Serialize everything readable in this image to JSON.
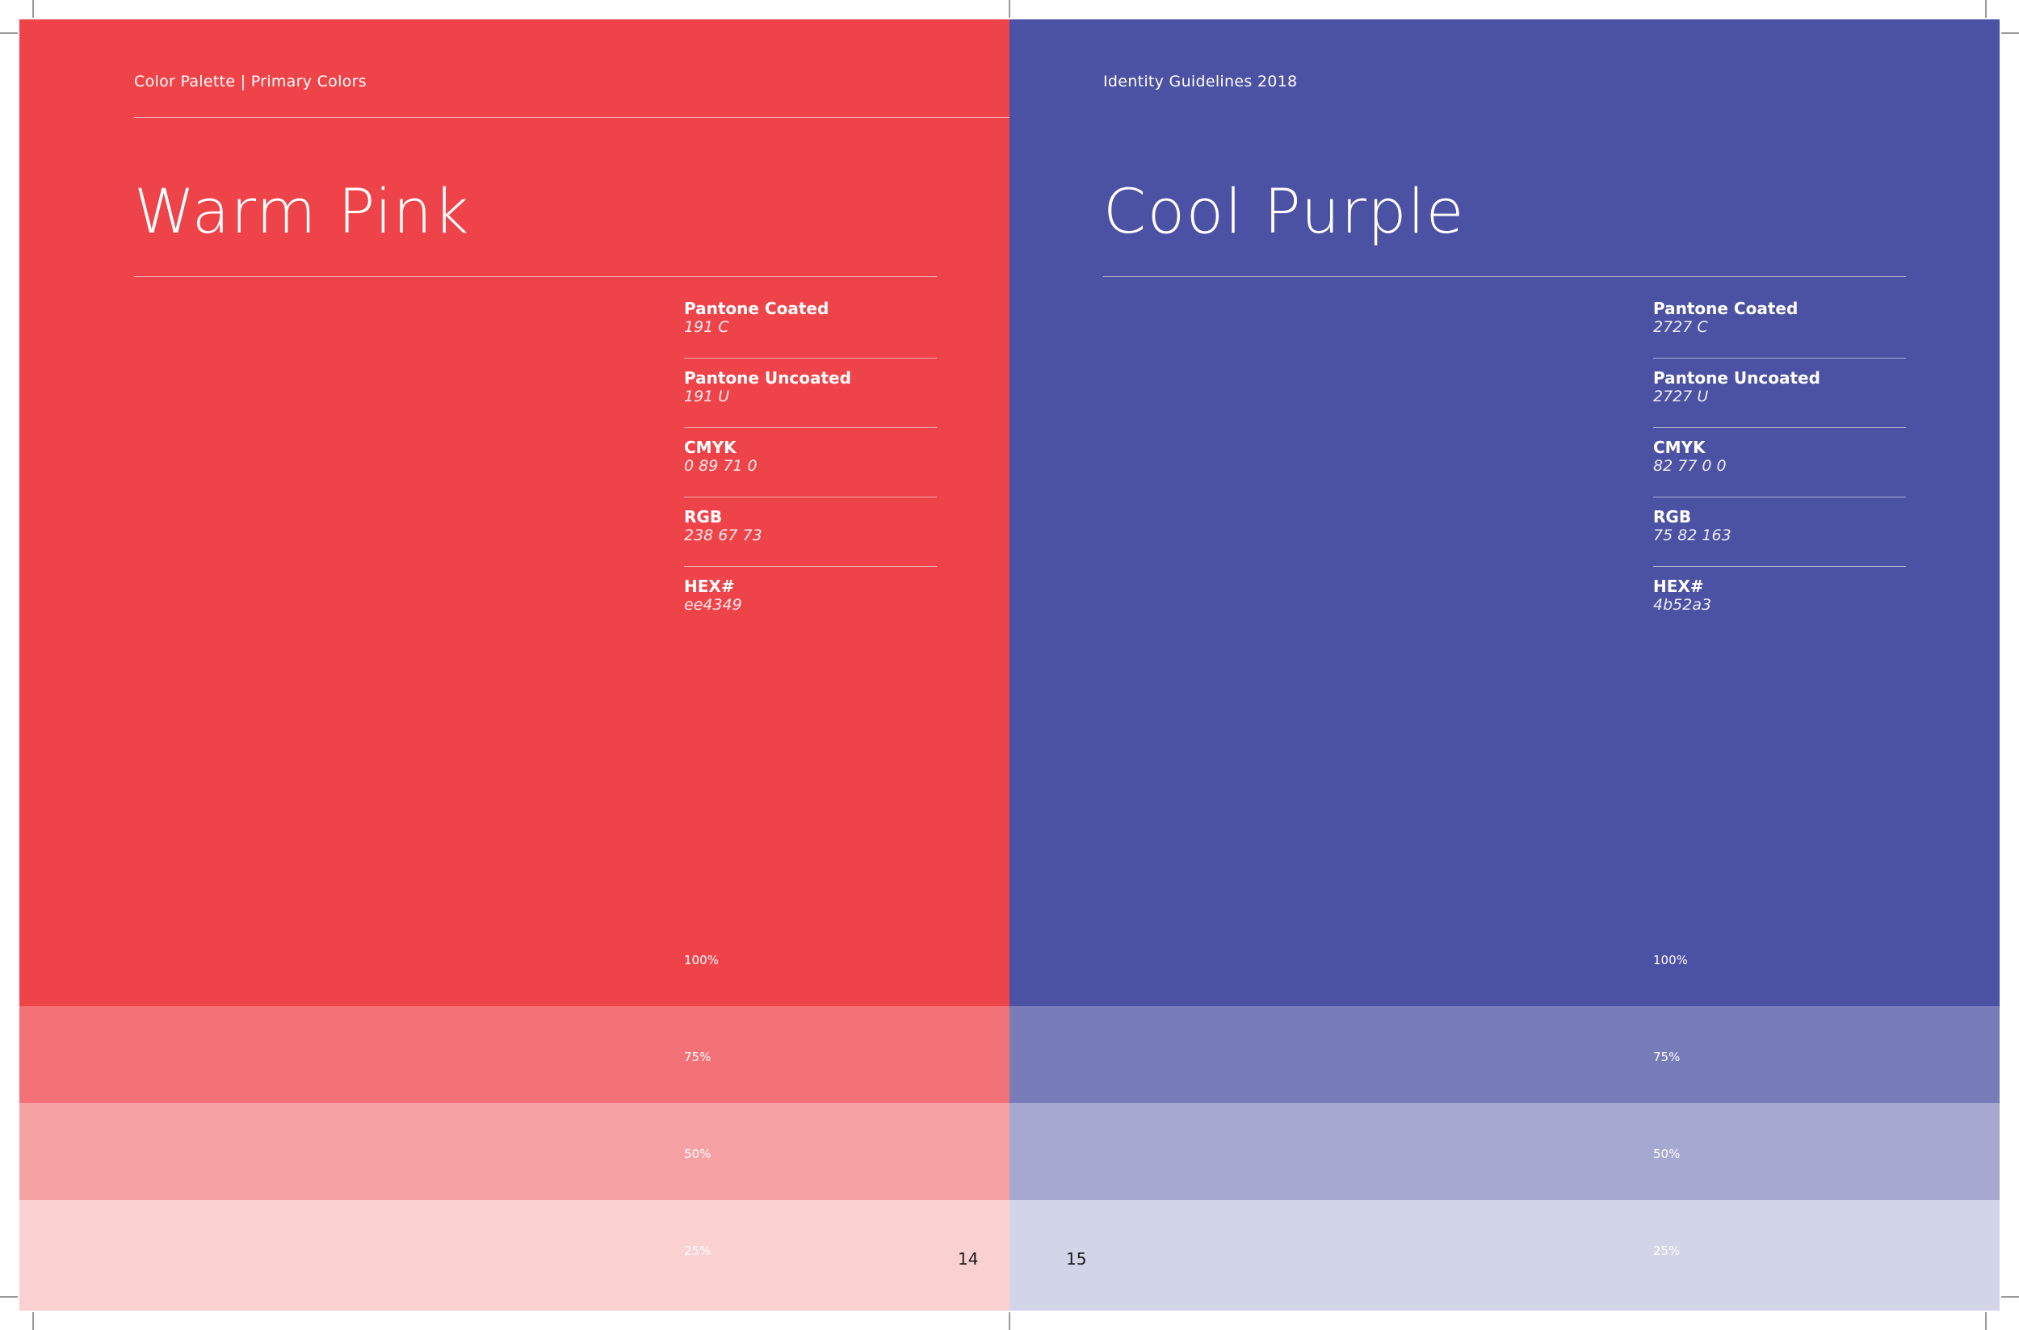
{
  "colors": {
    "warm_pink": "#ee4349",
    "cool_purple": "#4b52a3"
  },
  "left_page": {
    "header": "Color Palette | Primary Colors",
    "title": "Warm Pink",
    "specs": [
      {
        "label": "Pantone Coated",
        "value": "191 C"
      },
      {
        "label": "Pantone Uncoated",
        "value": "191 U"
      },
      {
        "label": "CMYK",
        "value": "0 89 71 0"
      },
      {
        "label": "RGB",
        "value": "238 67 73"
      },
      {
        "label": "HEX#",
        "value": "ee4349"
      }
    ],
    "tints": [
      "100%",
      "75%",
      "50%",
      "25%"
    ],
    "page_number": "14"
  },
  "right_page": {
    "header": "Identity Guidelines 2018",
    "title": "Cool Purple",
    "specs": [
      {
        "label": "Pantone Coated",
        "value": "2727 C"
      },
      {
        "label": "Pantone Uncoated",
        "value": "2727 U"
      },
      {
        "label": "CMYK",
        "value": "82 77 0 0"
      },
      {
        "label": "RGB",
        "value": "75 82 163"
      },
      {
        "label": "HEX#",
        "value": "4b52a3"
      }
    ],
    "tints": [
      "100%",
      "75%",
      "50%",
      "25%"
    ],
    "page_number": "15"
  }
}
